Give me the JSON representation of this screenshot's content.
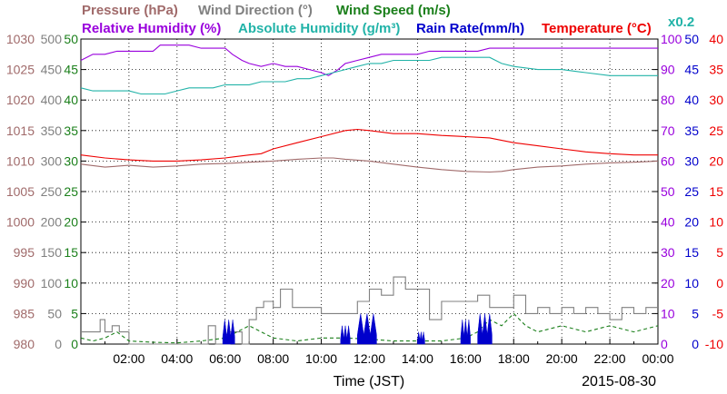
{
  "chart_data": {
    "type": "line",
    "date": "2015-08-30",
    "xlabel": "Time (JST)",
    "x_ticks": [
      "02:00",
      "04:00",
      "06:00",
      "08:00",
      "10:00",
      "12:00",
      "14:00",
      "16:00",
      "18:00",
      "20:00",
      "22:00",
      "00:00"
    ],
    "x_range_hours": [
      0,
      24
    ],
    "legend_row1": [
      {
        "label": "Pressure (hPa)",
        "color": "#a06a6a"
      },
      {
        "label": "Wind Direction (°)",
        "color": "#808080"
      },
      {
        "label": "Wind Speed (m/s)",
        "color": "#1a7f1a"
      }
    ],
    "legend_row2": [
      {
        "label": "Relative Humidity (%)",
        "color": "#9900dd"
      },
      {
        "label": "Absolute Humidity (g/m³)",
        "color": "#22b3a8"
      },
      {
        "label": "Rain Rate(mm/h)",
        "color": "#0000cc"
      },
      {
        "label": "Temperature (°C)",
        "color": "#ee0000"
      }
    ],
    "abs_humidity_scale": "x0.2",
    "axes": {
      "pressure": {
        "color": "#a06a6a",
        "min": 980,
        "max": 1030,
        "ticks": [
          "1030",
          "1025",
          "1020",
          "1015",
          "1010",
          "1005",
          "1000",
          "995",
          "990",
          "985",
          "980"
        ]
      },
      "wind_direction": {
        "color": "#808080",
        "min": 0,
        "max": 500,
        "ticks": [
          "500",
          "450",
          "400",
          "350",
          "300",
          "250",
          "200",
          "150",
          "100",
          "50",
          "0"
        ]
      },
      "wind_speed": {
        "color": "#1a7f1a",
        "min": 0,
        "max": 50,
        "ticks": [
          "50",
          "45",
          "40",
          "35",
          "30",
          "25",
          "20",
          "15",
          "10",
          "5",
          "0"
        ]
      },
      "humidity": {
        "color": "#9900dd",
        "min": 0,
        "max": 100,
        "ticks": [
          "100",
          "90",
          "80",
          "70",
          "60",
          "50",
          "40",
          "30",
          "20",
          "10",
          "0"
        ]
      },
      "rain_rate": {
        "color": "#0000cc",
        "min": 0,
        "max": 50,
        "ticks": [
          "50",
          "45",
          "40",
          "35",
          "30",
          "25",
          "20",
          "15",
          "10",
          "5",
          "0"
        ]
      },
      "temperature": {
        "color": "#ee0000",
        "min": -10,
        "max": 40,
        "ticks": [
          "40",
          "35",
          "30",
          "25",
          "20",
          "15",
          "10",
          "5",
          "0",
          "-5",
          "-10"
        ]
      }
    },
    "series": [
      {
        "name": "Relative Humidity (%)",
        "axis": "humidity",
        "color": "#9900dd",
        "style": "line",
        "points": [
          [
            0,
            93
          ],
          [
            0.5,
            95
          ],
          [
            1,
            95
          ],
          [
            1.5,
            96
          ],
          [
            2.5,
            96
          ],
          [
            3,
            96
          ],
          [
            3.3,
            98
          ],
          [
            4,
            98
          ],
          [
            4.5,
            98
          ],
          [
            5,
            97
          ],
          [
            6,
            97
          ],
          [
            6.3,
            95
          ],
          [
            6.7,
            93
          ],
          [
            7,
            92
          ],
          [
            7.5,
            91
          ],
          [
            8,
            92
          ],
          [
            8.5,
            91
          ],
          [
            9,
            91
          ],
          [
            9.5,
            90
          ],
          [
            10,
            89
          ],
          [
            10.3,
            88
          ],
          [
            10.7,
            90
          ],
          [
            11,
            92
          ],
          [
            11.5,
            93
          ],
          [
            12,
            94
          ],
          [
            12.5,
            95
          ],
          [
            13,
            95
          ],
          [
            14,
            95
          ],
          [
            14.5,
            96
          ],
          [
            15,
            96
          ],
          [
            15.5,
            96
          ],
          [
            16,
            96
          ],
          [
            16.5,
            96
          ],
          [
            17,
            97
          ],
          [
            18,
            97
          ],
          [
            20,
            97
          ],
          [
            22,
            97
          ],
          [
            24,
            97
          ]
        ]
      },
      {
        "name": "Absolute Humidity (g/m³)",
        "axis": "humidity",
        "color": "#22b3a8",
        "style": "line",
        "points": [
          [
            0,
            84
          ],
          [
            0.5,
            83
          ],
          [
            1,
            83
          ],
          [
            1.5,
            83
          ],
          [
            2,
            83
          ],
          [
            2.5,
            82
          ],
          [
            3,
            82
          ],
          [
            3.5,
            82
          ],
          [
            4,
            83
          ],
          [
            4.5,
            84
          ],
          [
            5,
            84
          ],
          [
            5.5,
            84
          ],
          [
            6,
            85
          ],
          [
            6.5,
            85
          ],
          [
            7,
            85
          ],
          [
            7.5,
            86
          ],
          [
            8,
            86
          ],
          [
            8.5,
            86
          ],
          [
            9,
            87
          ],
          [
            9.5,
            87
          ],
          [
            10,
            88
          ],
          [
            10.5,
            89
          ],
          [
            11,
            90
          ],
          [
            11.5,
            91
          ],
          [
            12,
            92
          ],
          [
            12.5,
            92
          ],
          [
            13,
            93
          ],
          [
            13.5,
            93
          ],
          [
            14,
            93
          ],
          [
            14.5,
            93
          ],
          [
            15,
            94
          ],
          [
            15.5,
            94
          ],
          [
            16,
            94
          ],
          [
            16.5,
            94
          ],
          [
            17,
            94
          ],
          [
            17.5,
            92
          ],
          [
            18,
            91
          ],
          [
            19,
            90
          ],
          [
            20,
            90
          ],
          [
            21,
            89
          ],
          [
            22,
            88
          ],
          [
            23,
            88
          ],
          [
            24,
            88
          ]
        ]
      },
      {
        "name": "Temperature (°C)",
        "axis": "temperature",
        "color": "#ee0000",
        "style": "line",
        "points": [
          [
            0,
            21
          ],
          [
            1,
            20.5
          ],
          [
            2,
            20.2
          ],
          [
            3,
            20
          ],
          [
            4,
            20
          ],
          [
            5,
            20.2
          ],
          [
            6,
            20.5
          ],
          [
            7,
            21
          ],
          [
            7.5,
            21.2
          ],
          [
            8,
            22
          ],
          [
            9,
            23
          ],
          [
            10,
            24
          ],
          [
            11,
            25
          ],
          [
            11.5,
            25.2
          ],
          [
            12,
            25
          ],
          [
            13,
            24.5
          ],
          [
            14,
            24.5
          ],
          [
            15,
            24.2
          ],
          [
            16,
            24
          ],
          [
            17,
            23.8
          ],
          [
            18,
            23
          ],
          [
            19,
            22.5
          ],
          [
            20,
            22
          ],
          [
            21,
            21.5
          ],
          [
            22,
            21.2
          ],
          [
            23,
            21
          ],
          [
            24,
            21
          ]
        ]
      },
      {
        "name": "Pressure (hPa)",
        "axis": "pressure",
        "color": "#a06a6a",
        "style": "line",
        "points": [
          [
            0,
            1009.5
          ],
          [
            1,
            1009
          ],
          [
            2,
            1009.3
          ],
          [
            3,
            1009
          ],
          [
            4,
            1009.2
          ],
          [
            5,
            1009.5
          ],
          [
            6,
            1009.6
          ],
          [
            7,
            1009.8
          ],
          [
            8,
            1010
          ],
          [
            9,
            1010.3
          ],
          [
            10,
            1010.5
          ],
          [
            10.5,
            1010.5
          ],
          [
            11,
            1010.3
          ],
          [
            12,
            1010
          ],
          [
            13,
            1009.5
          ],
          [
            14,
            1009
          ],
          [
            15,
            1008.6
          ],
          [
            16,
            1008.3
          ],
          [
            17,
            1008.2
          ],
          [
            17.5,
            1008.3
          ],
          [
            18,
            1008.6
          ],
          [
            19,
            1009
          ],
          [
            20,
            1009.2
          ],
          [
            21,
            1009.5
          ],
          [
            22,
            1009.7
          ],
          [
            23,
            1009.8
          ],
          [
            24,
            1010
          ]
        ]
      },
      {
        "name": "Wind Direction (°)",
        "axis": "wind_direction",
        "color": "#808080",
        "style": "step",
        "points": [
          [
            0,
            20
          ],
          [
            0.8,
            40
          ],
          [
            1,
            20
          ],
          [
            1.3,
            30
          ],
          [
            1.6,
            20
          ],
          [
            2,
            0
          ],
          [
            5,
            0
          ],
          [
            5.3,
            30
          ],
          [
            5.6,
            0
          ],
          [
            6.2,
            20
          ],
          [
            6.7,
            0
          ],
          [
            7,
            40
          ],
          [
            7.3,
            60
          ],
          [
            7.6,
            70
          ],
          [
            8,
            60
          ],
          [
            8.3,
            90
          ],
          [
            8.8,
            60
          ],
          [
            9,
            60
          ],
          [
            10,
            50
          ],
          [
            11,
            50
          ],
          [
            11.5,
            70
          ],
          [
            12,
            90
          ],
          [
            12.5,
            80
          ],
          [
            13,
            110
          ],
          [
            13.5,
            90
          ],
          [
            14,
            90
          ],
          [
            14.5,
            40
          ],
          [
            15,
            70
          ],
          [
            15.5,
            70
          ],
          [
            16,
            70
          ],
          [
            16.5,
            80
          ],
          [
            17,
            60
          ],
          [
            17.5,
            60
          ],
          [
            18,
            80
          ],
          [
            18.5,
            50
          ],
          [
            19,
            60
          ],
          [
            19.5,
            50
          ],
          [
            20,
            60
          ],
          [
            20.5,
            50
          ],
          [
            21,
            60
          ],
          [
            21.5,
            50
          ],
          [
            22,
            40
          ],
          [
            22.5,
            60
          ],
          [
            23,
            50
          ],
          [
            23.5,
            60
          ],
          [
            24,
            60
          ]
        ]
      },
      {
        "name": "Wind Speed (m/s)",
        "axis": "wind_speed",
        "color": "#1a7f1a",
        "style": "dashed",
        "points": [
          [
            0,
            1
          ],
          [
            0.5,
            0.5
          ],
          [
            1,
            1
          ],
          [
            1.5,
            2
          ],
          [
            2,
            0.5
          ],
          [
            3,
            0.3
          ],
          [
            4,
            0.2
          ],
          [
            5,
            0.5
          ],
          [
            6,
            1
          ],
          [
            6.5,
            2
          ],
          [
            7,
            3
          ],
          [
            7.5,
            2
          ],
          [
            8,
            1
          ],
          [
            9,
            0.5
          ],
          [
            10,
            1
          ],
          [
            11,
            1
          ],
          [
            12,
            0.8
          ],
          [
            13,
            0.5
          ],
          [
            14,
            0.5
          ],
          [
            15,
            0.5
          ],
          [
            16,
            1
          ],
          [
            16.5,
            2
          ],
          [
            17,
            4
          ],
          [
            17.5,
            3
          ],
          [
            18,
            5
          ],
          [
            18.5,
            3
          ],
          [
            19,
            2
          ],
          [
            20,
            3
          ],
          [
            21,
            2
          ],
          [
            22,
            3
          ],
          [
            23,
            2
          ],
          [
            24,
            3
          ]
        ]
      }
    ],
    "rain_bursts": [
      {
        "start": 5.9,
        "end": 6.4,
        "peak": 4
      },
      {
        "start": 10.8,
        "end": 11.2,
        "peak": 3
      },
      {
        "start": 11.5,
        "end": 12.3,
        "peak": 5
      },
      {
        "start": 14.0,
        "end": 14.3,
        "peak": 2
      },
      {
        "start": 15.8,
        "end": 16.2,
        "peak": 4
      },
      {
        "start": 16.5,
        "end": 17.1,
        "peak": 5
      }
    ]
  }
}
